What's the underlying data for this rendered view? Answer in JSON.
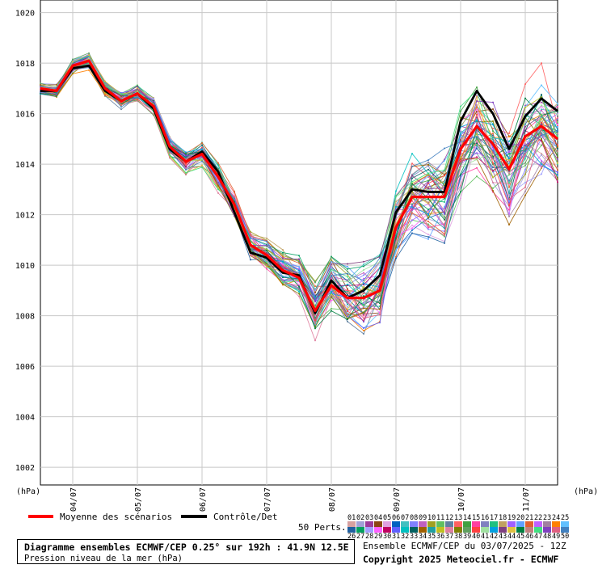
{
  "chart_data": {
    "type": "line",
    "ylabel_left": "(hPa)",
    "ylabel_right": "(hPa)",
    "ylim": [
      1001.3,
      1020.5
    ],
    "yticks": [
      1002,
      1004,
      1006,
      1008,
      1010,
      1012,
      1014,
      1016,
      1018,
      1020
    ],
    "xlim": [
      0,
      192
    ],
    "xticks": [
      {
        "label": "04/07",
        "t": 12
      },
      {
        "label": "05/07",
        "t": 36
      },
      {
        "label": "06/07",
        "t": 60
      },
      {
        "label": "07/07",
        "t": 84
      },
      {
        "label": "08/07",
        "t": 108
      },
      {
        "label": "09/07",
        "t": 132
      },
      {
        "label": "10/07",
        "t": 156
      },
      {
        "label": "11/07",
        "t": 180
      }
    ],
    "x": [
      0,
      6,
      12,
      18,
      24,
      30,
      36,
      42,
      48,
      54,
      60,
      66,
      72,
      78,
      84,
      90,
      96,
      102,
      108,
      114,
      120,
      126,
      132,
      138,
      144,
      150,
      156,
      162,
      168,
      174,
      180,
      186,
      192
    ],
    "series": [
      {
        "name": "Moyenne des scénarios",
        "color": "#ff0000",
        "values": [
          1017.0,
          1016.9,
          1017.9,
          1018.1,
          1017.0,
          1016.5,
          1016.8,
          1016.3,
          1014.7,
          1014.1,
          1014.4,
          1013.5,
          1012.4,
          1010.8,
          1010.4,
          1009.8,
          1009.5,
          1008.2,
          1009.2,
          1008.7,
          1008.7,
          1009.0,
          1011.5,
          1012.7,
          1012.7,
          1012.7,
          1014.6,
          1015.5,
          1014.8,
          1013.8,
          1015.1,
          1015.5,
          1015.0
        ]
      },
      {
        "name": "Contrôle/Det",
        "color": "#000000",
        "values": [
          1016.9,
          1016.9,
          1017.8,
          1017.9,
          1016.9,
          1016.5,
          1016.8,
          1016.2,
          1014.6,
          1014.1,
          1014.5,
          1013.7,
          1012.1,
          1010.5,
          1010.3,
          1009.7,
          1009.6,
          1008.1,
          1009.4,
          1008.7,
          1009.0,
          1009.6,
          1012.1,
          1013.0,
          1012.9,
          1012.9,
          1015.7,
          1016.9,
          1016.0,
          1014.6,
          1015.9,
          1016.6,
          1016.1
        ]
      }
    ],
    "perturbations_label": "50 Perts.",
    "perturbation_count": 50,
    "member_colors": [
      "#d7a0a0",
      "#a0a0d7",
      "#9b3a9b",
      "#8b4513",
      "#e0a0e0",
      "#0060c0",
      "#40c0c0",
      "#8080ff",
      "#c060c0",
      "#a0a020",
      "#60c060",
      "#6080a0",
      "#ff6060",
      "#40a040",
      "#ff40a0",
      "#8080c0",
      "#20c080",
      "#c0a060",
      "#a060ff",
      "#60a0ff",
      "#e06030",
      "#c060ff",
      "#a080a0",
      "#ff8000",
      "#60c0ff",
      "#2060a0",
      "#00a060",
      "#a0a0ff",
      "#ff60ff",
      "#c00060",
      "#6060ff",
      "#00c0c0",
      "#006060",
      "#a06000",
      "#20a0a0",
      "#c0c020",
      "#e080a0",
      "#808000",
      "#60a060",
      "#ff4040",
      "#a0e0a0",
      "#00a0e0",
      "#804080",
      "#e0c040",
      "#008040",
      "#c08080",
      "#40e080",
      "#8040c0",
      "#e06080",
      "#4080c0"
    ],
    "legend_mean": "Moyenne des scénarios",
    "legend_control": "Contrôle/Det",
    "member_numbers_row1": [
      "01",
      "02",
      "03",
      "04",
      "05",
      "06",
      "07",
      "08",
      "09",
      "10",
      "11",
      "12",
      "13",
      "14",
      "15",
      "16",
      "17",
      "18",
      "19",
      "20",
      "21",
      "22",
      "23",
      "24",
      "25"
    ],
    "member_numbers_row2": [
      "26",
      "27",
      "28",
      "29",
      "30",
      "31",
      "32",
      "33",
      "34",
      "35",
      "36",
      "37",
      "38",
      "39",
      "40",
      "41",
      "42",
      "43",
      "44",
      "45",
      "46",
      "47",
      "48",
      "49",
      "50"
    ]
  },
  "footer": {
    "title": "Diagramme ensembles ECMWF/CEP 0.25° sur 192h : 41.9N 12.5E",
    "subtitle": "Pression niveau de la mer (hPa)",
    "run": "Ensemble ECMWF/CEP du 03/07/2025 - 12Z",
    "copyright": "Copyright 2025 Meteociel.fr - ECMWF"
  }
}
